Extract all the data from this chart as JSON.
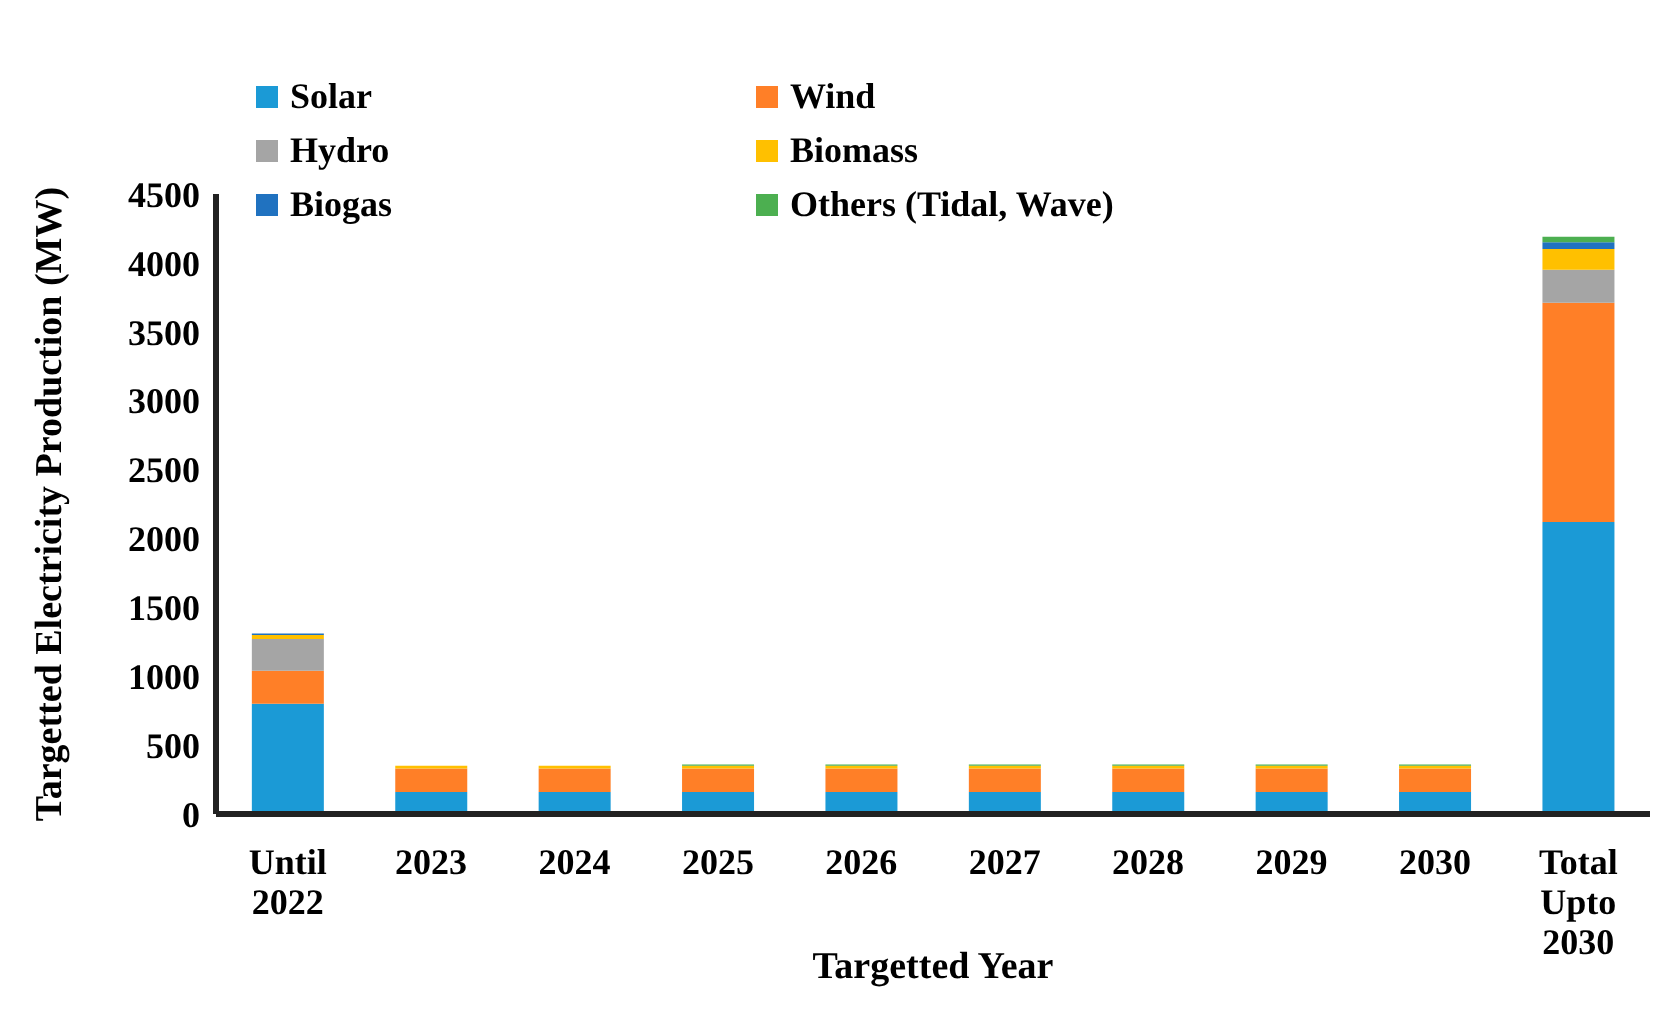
{
  "chart_data": {
    "type": "bar",
    "stacked": true,
    "xlabel": "Targetted Year",
    "ylabel": "Targetted Electricity Production (MW)",
    "categories": [
      "Until 2022",
      "2023",
      "2024",
      "2025",
      "2026",
      "2027",
      "2028",
      "2029",
      "2030",
      "Total Upto 2030"
    ],
    "series": [
      {
        "name": "Solar",
        "color": "#1b9ad6",
        "values": [
          800,
          160,
          160,
          160,
          160,
          160,
          160,
          160,
          160,
          2120
        ]
      },
      {
        "name": "Wind",
        "color": "#ff7f27",
        "values": [
          240,
          170,
          170,
          170,
          170,
          170,
          170,
          170,
          170,
          1590
        ]
      },
      {
        "name": "Hydro",
        "color": "#a5a5a5",
        "values": [
          230,
          0,
          0,
          0,
          0,
          0,
          0,
          0,
          0,
          240
        ]
      },
      {
        "name": "Biomass",
        "color": "#ffc000",
        "values": [
          30,
          20,
          20,
          20,
          20,
          20,
          20,
          20,
          20,
          150
        ]
      },
      {
        "name": "Biogas",
        "color": "#2072c0",
        "values": [
          10,
          0,
          0,
          0,
          0,
          0,
          0,
          0,
          0,
          50
        ]
      },
      {
        "name": "Others (Tidal, Wave)",
        "color": "#4caf50",
        "values": [
          0,
          0,
          0,
          10,
          10,
          10,
          10,
          10,
          10,
          40
        ]
      }
    ],
    "ylim": [
      0,
      4500
    ],
    "yticks": [
      0,
      500,
      1000,
      1500,
      2000,
      2500,
      3000,
      3500,
      4000,
      4500
    ],
    "grid": false,
    "legend": "top"
  }
}
